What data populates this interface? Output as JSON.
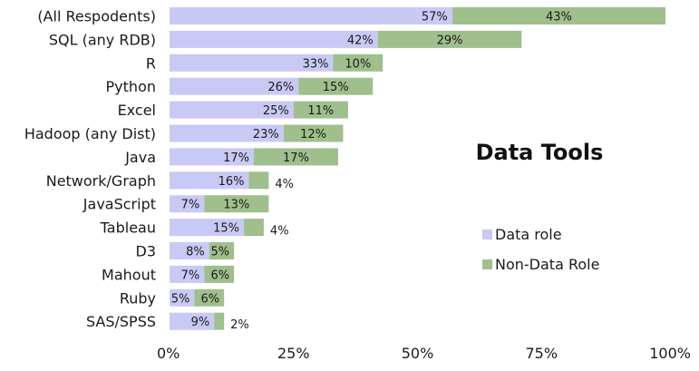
{
  "chart_data": {
    "type": "bar",
    "orientation": "horizontal",
    "stacked": true,
    "title": "Data Tools",
    "categories": [
      "(All Respodents)",
      "SQL (any RDB)",
      "R",
      "Python",
      "Excel",
      "Hadoop (any Dist)",
      "Java",
      "Network/Graph",
      "JavaScript",
      "Tableau",
      "D3",
      "Mahout",
      "Ruby",
      "SAS/SPSS"
    ],
    "series": [
      {
        "name": "Data role",
        "color": "#c9c9f5",
        "values": [
          57,
          42,
          33,
          26,
          25,
          23,
          17,
          16,
          7,
          15,
          8,
          7,
          5,
          9
        ]
      },
      {
        "name": "Non-Data Role",
        "color": "#9fbf8c",
        "values": [
          43,
          29,
          10,
          15,
          11,
          12,
          17,
          4,
          13,
          4,
          5,
          6,
          6,
          2
        ]
      }
    ],
    "value_labels": [
      [
        "57%",
        "42%",
        "33%",
        "26%",
        "25%",
        "23%",
        "17%",
        "16%",
        "7%",
        "15%",
        "8%",
        "7%",
        "5%",
        "9%"
      ],
      [
        "43%",
        "29%",
        "10%",
        "15%",
        "11%",
        "12%",
        "17%",
        "4%",
        "13%",
        "4%",
        "5%",
        "6%",
        "6%",
        "2%"
      ]
    ],
    "xlim": [
      0,
      100
    ],
    "x_ticks": [
      0,
      25,
      50,
      75,
      100
    ],
    "x_tick_labels": [
      "0%",
      "25%",
      "50%",
      "75%",
      "100%"
    ],
    "grid": false,
    "legend_position": "right"
  }
}
